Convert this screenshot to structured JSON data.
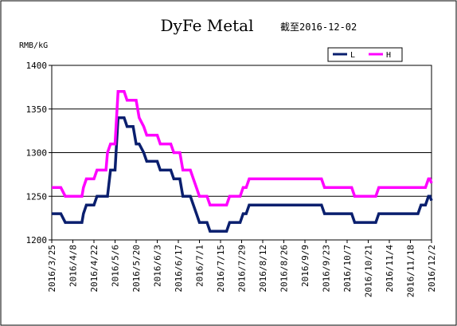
{
  "chart_data": {
    "type": "line",
    "title": "DyFe Metal",
    "subtitle": "截至2016-12-02",
    "yunit": "RMB/kG",
    "ylim": [
      1200,
      1400
    ],
    "yticks": [
      1200,
      1250,
      1300,
      1350,
      1400
    ],
    "grid": "horizontal",
    "legend_position": "top-right",
    "x_tick_labels": [
      "2016/3/25",
      "2016/4/8",
      "2016/4/22",
      "2016/5/6",
      "2016/5/20",
      "2016/6/3",
      "2016/6/17",
      "2016/7/1",
      "2016/7/15",
      "2016/7/29",
      "2016/8/12",
      "2016/8/26",
      "2016/9/9",
      "2016/9/23",
      "2016/10/7",
      "2016/10/21",
      "2016/11/4",
      "2016/11/18",
      "2016/12/2"
    ],
    "series": [
      {
        "name": "L",
        "color": "#0a1f6e",
        "points": [
          [
            "2016/3/25",
            1230
          ],
          [
            "2016/3/31",
            1230
          ],
          [
            "2016/4/3",
            1220
          ],
          [
            "2016/4/14",
            1220
          ],
          [
            "2016/4/15",
            1230
          ],
          [
            "2016/4/17",
            1240
          ],
          [
            "2016/4/22",
            1240
          ],
          [
            "2016/4/24",
            1250
          ],
          [
            "2016/5/1",
            1250
          ],
          [
            "2016/5/3",
            1280
          ],
          [
            "2016/5/6",
            1280
          ],
          [
            "2016/5/8",
            1340
          ],
          [
            "2016/5/12",
            1340
          ],
          [
            "2016/5/14",
            1330
          ],
          [
            "2016/5/18",
            1330
          ],
          [
            "2016/5/20",
            1310
          ],
          [
            "2016/5/22",
            1310
          ],
          [
            "2016/5/25",
            1300
          ],
          [
            "2016/5/27",
            1290
          ],
          [
            "2016/6/3",
            1290
          ],
          [
            "2016/6/5",
            1280
          ],
          [
            "2016/6/12",
            1280
          ],
          [
            "2016/6/14",
            1270
          ],
          [
            "2016/6/18",
            1270
          ],
          [
            "2016/6/20",
            1250
          ],
          [
            "2016/6/25",
            1250
          ],
          [
            "2016/6/27",
            1240
          ],
          [
            "2016/6/29",
            1230
          ],
          [
            "2016/7/1",
            1220
          ],
          [
            "2016/7/6",
            1220
          ],
          [
            "2016/7/8",
            1210
          ],
          [
            "2016/7/19",
            1210
          ],
          [
            "2016/7/21",
            1220
          ],
          [
            "2016/7/28",
            1220
          ],
          [
            "2016/7/30",
            1230
          ],
          [
            "2016/8/1",
            1230
          ],
          [
            "2016/8/3",
            1240
          ],
          [
            "2016/9/20",
            1240
          ],
          [
            "2016/9/22",
            1230
          ],
          [
            "2016/10/10",
            1230
          ],
          [
            "2016/10/12",
            1220
          ],
          [
            "2016/10/26",
            1220
          ],
          [
            "2016/10/28",
            1230
          ],
          [
            "2016/11/23",
            1230
          ],
          [
            "2016/11/25",
            1240
          ],
          [
            "2016/11/28",
            1240
          ],
          [
            "2016/11/30",
            1250
          ],
          [
            "2016/12/1",
            1250
          ],
          [
            "2016/12/2",
            1245
          ]
        ]
      },
      {
        "name": "H",
        "color": "#ff00ff",
        "points": [
          [
            "2016/3/25",
            1260
          ],
          [
            "2016/3/31",
            1260
          ],
          [
            "2016/4/3",
            1250
          ],
          [
            "2016/4/14",
            1250
          ],
          [
            "2016/4/15",
            1260
          ],
          [
            "2016/4/17",
            1270
          ],
          [
            "2016/4/22",
            1270
          ],
          [
            "2016/4/24",
            1280
          ],
          [
            "2016/4/30",
            1280
          ],
          [
            "2016/5/1",
            1300
          ],
          [
            "2016/5/3",
            1310
          ],
          [
            "2016/5/6",
            1310
          ],
          [
            "2016/5/8",
            1370
          ],
          [
            "2016/5/12",
            1370
          ],
          [
            "2016/5/14",
            1360
          ],
          [
            "2016/5/20",
            1360
          ],
          [
            "2016/5/22",
            1340
          ],
          [
            "2016/5/25",
            1330
          ],
          [
            "2016/5/27",
            1320
          ],
          [
            "2016/6/3",
            1320
          ],
          [
            "2016/6/5",
            1310
          ],
          [
            "2016/6/12",
            1310
          ],
          [
            "2016/6/14",
            1300
          ],
          [
            "2016/6/18",
            1300
          ],
          [
            "2016/6/20",
            1280
          ],
          [
            "2016/6/25",
            1280
          ],
          [
            "2016/6/27",
            1270
          ],
          [
            "2016/6/29",
            1260
          ],
          [
            "2016/7/1",
            1250
          ],
          [
            "2016/7/6",
            1250
          ],
          [
            "2016/7/8",
            1240
          ],
          [
            "2016/7/19",
            1240
          ],
          [
            "2016/7/21",
            1250
          ],
          [
            "2016/7/28",
            1250
          ],
          [
            "2016/7/30",
            1260
          ],
          [
            "2016/8/1",
            1260
          ],
          [
            "2016/8/3",
            1270
          ],
          [
            "2016/9/20",
            1270
          ],
          [
            "2016/9/22",
            1260
          ],
          [
            "2016/10/10",
            1260
          ],
          [
            "2016/10/12",
            1250
          ],
          [
            "2016/10/26",
            1250
          ],
          [
            "2016/10/28",
            1260
          ],
          [
            "2016/11/23",
            1260
          ],
          [
            "2016/11/25",
            1260
          ],
          [
            "2016/11/28",
            1260
          ],
          [
            "2016/11/30",
            1270
          ],
          [
            "2016/12/1",
            1270
          ],
          [
            "2016/12/2",
            1265
          ]
        ]
      }
    ]
  }
}
